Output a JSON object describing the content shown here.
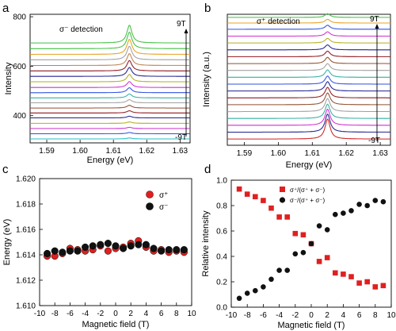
{
  "chart_data": [
    {
      "panel": "a",
      "type": "line",
      "annotation": "σ⁻ detection",
      "field_top_label": "9T",
      "field_bottom_label": "-9T",
      "xlabel": "Energy (eV)",
      "ylabel": "Intensity",
      "xlim": [
        1.585,
        1.633
      ],
      "ylim": [
        290,
        810
      ],
      "x_ticks": [
        "1.59",
        "1.60",
        "1.61",
        "1.62",
        "1.63"
      ],
      "y_ticks": [
        "400",
        "600",
        "800"
      ],
      "peak_energy_eV": 1.6148,
      "traces": [
        {
          "field_T": -9,
          "color": "#20c0c8",
          "baseline": 306,
          "peak_height": 4
        },
        {
          "field_T": -8,
          "color": "#3050e0",
          "baseline": 327,
          "peak_height": 5
        },
        {
          "field_T": -7,
          "color": "#d030d0",
          "baseline": 348,
          "peak_height": 5
        },
        {
          "field_T": -6,
          "color": "#b0b020",
          "baseline": 369,
          "peak_height": 6
        },
        {
          "field_T": -5,
          "color": "#202090",
          "baseline": 391,
          "peak_height": 7
        },
        {
          "field_T": -4,
          "color": "#901820",
          "baseline": 411,
          "peak_height": 9
        },
        {
          "field_T": -3,
          "color": "#905030",
          "baseline": 431,
          "peak_height": 11
        },
        {
          "field_T": -2,
          "color": "#a0a0a0",
          "baseline": 452,
          "peak_height": 13
        },
        {
          "field_T": -1,
          "color": "#30b0a0",
          "baseline": 472,
          "peak_height": 16
        },
        {
          "field_T": 0,
          "color": "#3050e0",
          "baseline": 493,
          "peak_height": 20
        },
        {
          "field_T": 1,
          "color": "#d030d0",
          "baseline": 514,
          "peak_height": 24
        },
        {
          "field_T": 2,
          "color": "#b0b020",
          "baseline": 537,
          "peak_height": 30
        },
        {
          "field_T": 3,
          "color": "#202090",
          "baseline": 559,
          "peak_height": 36
        },
        {
          "field_T": 4,
          "color": "#901820",
          "baseline": 581,
          "peak_height": 42
        },
        {
          "field_T": 5,
          "color": "#c08050",
          "baseline": 603,
          "peak_height": 48
        },
        {
          "field_T": 6,
          "color": "#a0a0a0",
          "baseline": 626,
          "peak_height": 55
        },
        {
          "field_T": 7,
          "color": "#e8a020",
          "baseline": 648,
          "peak_height": 61
        },
        {
          "field_T": 8,
          "color": "#40c040",
          "baseline": 671,
          "peak_height": 67
        },
        {
          "field_T": 9,
          "color": "#40c040",
          "baseline": 694,
          "peak_height": 72
        }
      ]
    },
    {
      "panel": "b",
      "type": "line",
      "annotation": "σ⁺ detection",
      "field_top_label": "9T",
      "field_bottom_label": "-9T",
      "xlabel": "Energy (eV)",
      "ylabel": "Intensity (a.u.)",
      "xlim": [
        1.585,
        1.633
      ],
      "ylim": [
        0,
        21
      ],
      "x_ticks": [
        "1.59",
        "1.60",
        "1.61",
        "1.62",
        "1.63"
      ],
      "peak_energy_eV": 1.6145,
      "traces": [
        {
          "field_T": -9,
          "color": "#d02020",
          "baseline": 1.0,
          "peak_height": 3.2
        },
        {
          "field_T": -8,
          "color": "#202090",
          "baseline": 2.1,
          "peak_height": 2.9
        },
        {
          "field_T": -7,
          "color": "#d030d0",
          "baseline": 3.2,
          "peak_height": 2.6
        },
        {
          "field_T": -6,
          "color": "#30b0a0",
          "baseline": 4.3,
          "peak_height": 2.3
        },
        {
          "field_T": -5,
          "color": "#a0a0a0",
          "baseline": 5.4,
          "peak_height": 2.1
        },
        {
          "field_T": -4,
          "color": "#905030",
          "baseline": 6.5,
          "peak_height": 1.9
        },
        {
          "field_T": -3,
          "color": "#901820",
          "baseline": 7.6,
          "peak_height": 1.7
        },
        {
          "field_T": -2,
          "color": "#202090",
          "baseline": 8.7,
          "peak_height": 1.5
        },
        {
          "field_T": -1,
          "color": "#3050e0",
          "baseline": 9.8,
          "peak_height": 1.3
        },
        {
          "field_T": 0,
          "color": "#30b0a0",
          "baseline": 10.9,
          "peak_height": 1.2
        },
        {
          "field_T": 1,
          "color": "#a0a0a0",
          "baseline": 12.0,
          "peak_height": 1.1
        },
        {
          "field_T": 2,
          "color": "#905030",
          "baseline": 13.1,
          "peak_height": 1.0
        },
        {
          "field_T": 3,
          "color": "#901820",
          "baseline": 14.2,
          "peak_height": 0.9
        },
        {
          "field_T": 4,
          "color": "#202090",
          "baseline": 15.3,
          "peak_height": 0.8
        },
        {
          "field_T": 5,
          "color": "#b0b020",
          "baseline": 16.4,
          "peak_height": 0.75
        },
        {
          "field_T": 6,
          "color": "#d030d0",
          "baseline": 17.5,
          "peak_height": 0.7
        },
        {
          "field_T": 7,
          "color": "#3050e0",
          "baseline": 18.6,
          "peak_height": 0.65
        },
        {
          "field_T": 8,
          "color": "#e8a020",
          "baseline": 19.6,
          "peak_height": 0.6
        },
        {
          "field_T": 9,
          "color": "#40c040",
          "baseline": 20.5,
          "peak_height": 0.6
        }
      ]
    },
    {
      "panel": "c",
      "type": "scatter",
      "xlabel": "Magnetic field (T)",
      "ylabel": "Energy (eV)",
      "xlim": [
        -10,
        10
      ],
      "ylim": [
        1.61,
        1.62
      ],
      "x_ticks": [
        "-10",
        "-8",
        "-6",
        "-4",
        "-2",
        "0",
        "2",
        "4",
        "6",
        "8",
        "10"
      ],
      "y_ticks": [
        "1.610",
        "1.612",
        "1.614",
        "1.616",
        "1.618",
        "1.620"
      ],
      "legend_position": "top-right",
      "series": [
        {
          "name": "σ⁺",
          "color": "#e02020",
          "x": [
            -9,
            -8,
            -7,
            -6,
            -5,
            -4,
            -3,
            -2,
            -1,
            0,
            1,
            2,
            3,
            4,
            5,
            6,
            7,
            8,
            9
          ],
          "y": [
            1.6139,
            1.6139,
            1.6141,
            1.6145,
            1.6144,
            1.6143,
            1.6144,
            1.6147,
            1.6143,
            1.6145,
            1.6146,
            1.6149,
            1.6151,
            1.6146,
            1.6143,
            1.6144,
            1.6142,
            1.6143,
            1.6142
          ]
        },
        {
          "name": "σ⁻",
          "color": "#111111",
          "x": [
            -9,
            -8,
            -7,
            -6,
            -5,
            -4,
            -3,
            -2,
            -1,
            0,
            1,
            2,
            3,
            4,
            5,
            6,
            7,
            8,
            9
          ],
          "y": [
            1.6141,
            1.6143,
            1.6142,
            1.6143,
            1.6143,
            1.6146,
            1.6147,
            1.6148,
            1.6149,
            1.6147,
            1.6145,
            1.6147,
            1.6148,
            1.6148,
            1.6145,
            1.6143,
            1.6144,
            1.6144,
            1.6144
          ]
        }
      ]
    },
    {
      "panel": "d",
      "type": "scatter",
      "xlabel": "Magnetic field (T)",
      "ylabel": "Relative intensity",
      "xlim": [
        -10,
        10
      ],
      "ylim": [
        0,
        1.0
      ],
      "x_ticks": [
        "-10",
        "-8",
        "-6",
        "-4",
        "-2",
        "0",
        "2",
        "4",
        "6",
        "8",
        "10"
      ],
      "y_ticks": [
        "0.0",
        "0.2",
        "0.4",
        "0.6",
        "0.8",
        "1.0"
      ],
      "legend_position": "top-center",
      "series": [
        {
          "name": "σ⁺/(σ⁺ + σ⁻)",
          "color": "#e02020",
          "marker": "square",
          "x": [
            -9,
            -8,
            -7,
            -6,
            -5,
            -4,
            -3,
            -2,
            -1,
            0,
            1,
            2,
            3,
            4,
            5,
            6,
            7,
            8,
            9
          ],
          "y": [
            0.93,
            0.89,
            0.87,
            0.84,
            0.78,
            0.71,
            0.71,
            0.58,
            0.57,
            0.5,
            0.36,
            0.39,
            0.27,
            0.26,
            0.24,
            0.19,
            0.2,
            0.16,
            0.17
          ]
        },
        {
          "name": "σ⁻/(σ⁺ + σ⁻)",
          "color": "#111111",
          "marker": "circle",
          "x": [
            -9,
            -8,
            -7,
            -6,
            -5,
            -4,
            -3,
            -2,
            -1,
            0,
            1,
            2,
            3,
            4,
            5,
            6,
            7,
            8,
            9
          ],
          "y": [
            0.07,
            0.11,
            0.13,
            0.16,
            0.22,
            0.29,
            0.29,
            0.42,
            0.43,
            0.5,
            0.64,
            0.61,
            0.73,
            0.74,
            0.76,
            0.81,
            0.8,
            0.84,
            0.83
          ]
        }
      ]
    }
  ],
  "panel_labels": [
    "a",
    "b",
    "c",
    "d"
  ]
}
